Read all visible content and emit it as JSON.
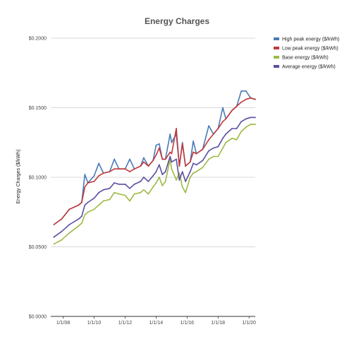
{
  "chart_data": {
    "type": "line",
    "title": "Energy Charges",
    "xlabel": "",
    "ylabel": "Energy Charges ($/kWh)",
    "ylim": [
      0,
      0.2
    ],
    "yticks": [
      "$0.0000",
      "$0.0500",
      "$0.1000",
      "$0.1500",
      "$0.2000"
    ],
    "ytick_values": [
      0,
      0.05,
      0.1,
      0.15,
      0.2
    ],
    "xlim": [
      2007.2,
      2020.4
    ],
    "xticks": [
      "1/1/08",
      "1/1/10",
      "1/1/12",
      "1/1/14",
      "1/1/16",
      "1/1/18",
      "1/1/20"
    ],
    "xtick_values": [
      2008,
      2010,
      2012,
      2014,
      2016,
      2018,
      2020
    ],
    "grid": true,
    "legend_position": "top-right",
    "series": [
      {
        "name": "High peak energy ($/kWh)",
        "color": "#4a7ab5",
        "points": [
          [
            2007.4,
            0.066
          ],
          [
            2007.9,
            0.07
          ],
          [
            2008.4,
            0.077
          ],
          [
            2009.0,
            0.08
          ],
          [
            2009.2,
            0.082
          ],
          [
            2009.4,
            0.102
          ],
          [
            2009.6,
            0.096
          ],
          [
            2010.0,
            0.101
          ],
          [
            2010.3,
            0.11
          ],
          [
            2010.6,
            0.103
          ],
          [
            2011.0,
            0.104
          ],
          [
            2011.3,
            0.113
          ],
          [
            2011.6,
            0.106
          ],
          [
            2012.0,
            0.106
          ],
          [
            2012.3,
            0.113
          ],
          [
            2012.6,
            0.106
          ],
          [
            2013.0,
            0.108
          ],
          [
            2013.2,
            0.114
          ],
          [
            2013.5,
            0.108
          ],
          [
            2013.8,
            0.112
          ],
          [
            2014.0,
            0.123
          ],
          [
            2014.2,
            0.124
          ],
          [
            2014.4,
            0.113
          ],
          [
            2014.6,
            0.113
          ],
          [
            2014.9,
            0.131
          ],
          [
            2015.0,
            0.125
          ],
          [
            2015.3,
            0.131
          ],
          [
            2015.5,
            0.108
          ],
          [
            2015.7,
            0.125
          ],
          [
            2015.9,
            0.108
          ],
          [
            2016.2,
            0.111
          ],
          [
            2016.4,
            0.126
          ],
          [
            2016.6,
            0.117
          ],
          [
            2017.0,
            0.12
          ],
          [
            2017.4,
            0.137
          ],
          [
            2017.7,
            0.131
          ],
          [
            2018.0,
            0.135
          ],
          [
            2018.3,
            0.15
          ],
          [
            2018.5,
            0.142
          ],
          [
            2018.9,
            0.148
          ],
          [
            2019.2,
            0.151
          ],
          [
            2019.5,
            0.162
          ],
          [
            2019.8,
            0.162
          ],
          [
            2020.1,
            0.157
          ],
          [
            2020.4,
            0.156
          ]
        ]
      },
      {
        "name": "Low peak energy ($/kWh)",
        "color": "#c0393b",
        "points": [
          [
            2007.4,
            0.066
          ],
          [
            2007.9,
            0.07
          ],
          [
            2008.4,
            0.077
          ],
          [
            2009.0,
            0.08
          ],
          [
            2009.2,
            0.082
          ],
          [
            2009.4,
            0.093
          ],
          [
            2009.6,
            0.096
          ],
          [
            2010.0,
            0.097
          ],
          [
            2010.3,
            0.101
          ],
          [
            2010.6,
            0.103
          ],
          [
            2011.0,
            0.104
          ],
          [
            2011.3,
            0.106
          ],
          [
            2011.6,
            0.106
          ],
          [
            2012.0,
            0.106
          ],
          [
            2012.3,
            0.104
          ],
          [
            2012.6,
            0.106
          ],
          [
            2013.0,
            0.108
          ],
          [
            2013.2,
            0.111
          ],
          [
            2013.5,
            0.108
          ],
          [
            2013.8,
            0.112
          ],
          [
            2014.0,
            0.116
          ],
          [
            2014.2,
            0.121
          ],
          [
            2014.4,
            0.113
          ],
          [
            2014.6,
            0.113
          ],
          [
            2014.9,
            0.118
          ],
          [
            2015.0,
            0.117
          ],
          [
            2015.3,
            0.135
          ],
          [
            2015.5,
            0.108
          ],
          [
            2015.7,
            0.124
          ],
          [
            2015.9,
            0.108
          ],
          [
            2016.2,
            0.111
          ],
          [
            2016.4,
            0.118
          ],
          [
            2016.6,
            0.117
          ],
          [
            2017.0,
            0.12
          ],
          [
            2017.4,
            0.127
          ],
          [
            2017.7,
            0.131
          ],
          [
            2018.0,
            0.135
          ],
          [
            2018.3,
            0.14
          ],
          [
            2018.5,
            0.142
          ],
          [
            2018.9,
            0.148
          ],
          [
            2019.2,
            0.151
          ],
          [
            2019.5,
            0.154
          ],
          [
            2019.8,
            0.156
          ],
          [
            2020.1,
            0.157
          ],
          [
            2020.4,
            0.156
          ]
        ]
      },
      {
        "name": "Base energy  ($/kWh)",
        "color": "#9cba45",
        "points": [
          [
            2007.4,
            0.052
          ],
          [
            2007.9,
            0.055
          ],
          [
            2008.4,
            0.06
          ],
          [
            2009.0,
            0.065
          ],
          [
            2009.2,
            0.067
          ],
          [
            2009.4,
            0.073
          ],
          [
            2009.6,
            0.075
          ],
          [
            2010.0,
            0.077
          ],
          [
            2010.3,
            0.08
          ],
          [
            2010.6,
            0.083
          ],
          [
            2011.0,
            0.084
          ],
          [
            2011.3,
            0.089
          ],
          [
            2011.6,
            0.088
          ],
          [
            2012.0,
            0.087
          ],
          [
            2012.3,
            0.083
          ],
          [
            2012.6,
            0.088
          ],
          [
            2013.0,
            0.089
          ],
          [
            2013.2,
            0.091
          ],
          [
            2013.5,
            0.088
          ],
          [
            2013.8,
            0.093
          ],
          [
            2014.0,
            0.096
          ],
          [
            2014.2,
            0.1
          ],
          [
            2014.4,
            0.094
          ],
          [
            2014.6,
            0.097
          ],
          [
            2014.9,
            0.113
          ],
          [
            2015.0,
            0.106
          ],
          [
            2015.3,
            0.098
          ],
          [
            2015.5,
            0.103
          ],
          [
            2015.7,
            0.093
          ],
          [
            2015.9,
            0.089
          ],
          [
            2016.2,
            0.1
          ],
          [
            2016.4,
            0.103
          ],
          [
            2016.6,
            0.104
          ],
          [
            2017.0,
            0.107
          ],
          [
            2017.4,
            0.113
          ],
          [
            2017.7,
            0.115
          ],
          [
            2018.0,
            0.115
          ],
          [
            2018.3,
            0.121
          ],
          [
            2018.5,
            0.125
          ],
          [
            2018.9,
            0.128
          ],
          [
            2019.2,
            0.127
          ],
          [
            2019.5,
            0.133
          ],
          [
            2019.8,
            0.136
          ],
          [
            2020.1,
            0.138
          ],
          [
            2020.4,
            0.138
          ]
        ]
      },
      {
        "name": "Average energy ($/kWh)",
        "color": "#5b4fa3",
        "points": [
          [
            2007.4,
            0.057
          ],
          [
            2007.9,
            0.061
          ],
          [
            2008.4,
            0.066
          ],
          [
            2009.0,
            0.07
          ],
          [
            2009.2,
            0.072
          ],
          [
            2009.4,
            0.08
          ],
          [
            2009.6,
            0.082
          ],
          [
            2010.0,
            0.085
          ],
          [
            2010.3,
            0.089
          ],
          [
            2010.6,
            0.091
          ],
          [
            2011.0,
            0.092
          ],
          [
            2011.3,
            0.096
          ],
          [
            2011.6,
            0.095
          ],
          [
            2012.0,
            0.095
          ],
          [
            2012.3,
            0.092
          ],
          [
            2012.6,
            0.095
          ],
          [
            2013.0,
            0.097
          ],
          [
            2013.2,
            0.1
          ],
          [
            2013.5,
            0.097
          ],
          [
            2013.8,
            0.101
          ],
          [
            2014.0,
            0.104
          ],
          [
            2014.2,
            0.109
          ],
          [
            2014.4,
            0.102
          ],
          [
            2014.6,
            0.104
          ],
          [
            2014.9,
            0.115
          ],
          [
            2015.0,
            0.111
          ],
          [
            2015.3,
            0.113
          ],
          [
            2015.5,
            0.098
          ],
          [
            2015.7,
            0.104
          ],
          [
            2015.9,
            0.097
          ],
          [
            2016.2,
            0.104
          ],
          [
            2016.4,
            0.11
          ],
          [
            2016.6,
            0.109
          ],
          [
            2017.0,
            0.112
          ],
          [
            2017.4,
            0.119
          ],
          [
            2017.7,
            0.121
          ],
          [
            2018.0,
            0.122
          ],
          [
            2018.3,
            0.128
          ],
          [
            2018.5,
            0.131
          ],
          [
            2018.9,
            0.135
          ],
          [
            2019.2,
            0.135
          ],
          [
            2019.5,
            0.14
          ],
          [
            2019.8,
            0.142
          ],
          [
            2020.1,
            0.143
          ],
          [
            2020.4,
            0.143
          ]
        ]
      }
    ]
  }
}
